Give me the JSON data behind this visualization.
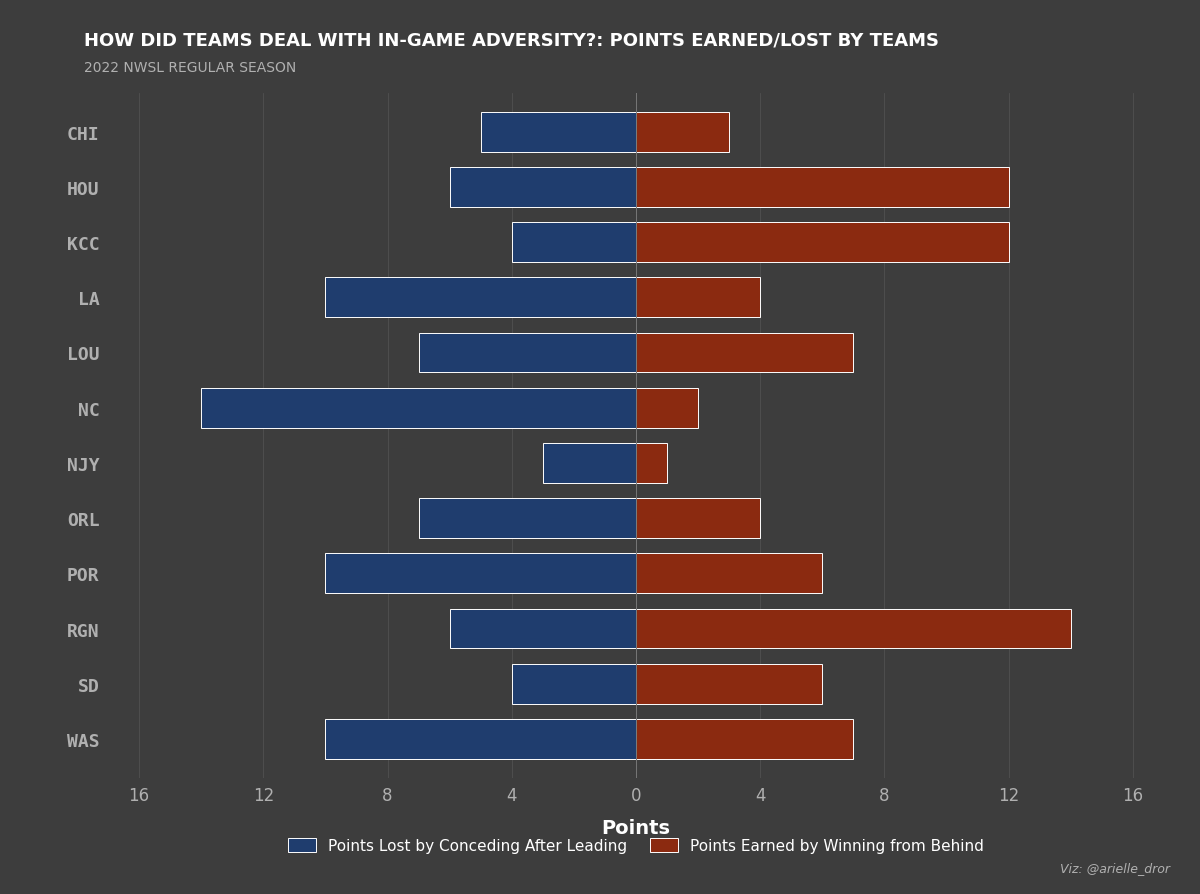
{
  "teams": [
    "CHI",
    "HOU",
    "KCC",
    "LA",
    "LOU",
    "NC",
    "NJY",
    "ORL",
    "POR",
    "RGN",
    "SD",
    "WAS"
  ],
  "points_lost": [
    -5,
    -6,
    -4,
    -10,
    -7,
    -14,
    -3,
    -7,
    -10,
    -6,
    -4,
    -10
  ],
  "points_earned": [
    3,
    12,
    12,
    4,
    7,
    2,
    1,
    4,
    6,
    14,
    6,
    7
  ],
  "blue_color": "#1f3d6e",
  "red_color": "#8b2a10",
  "bg_color": "#3d3d3d",
  "grid_color": "#555555",
  "text_color": "#b0b0b0",
  "label_color": "#ffffff",
  "title": "HOW DID TEAMS DEAL WITH IN-GAME ADVERSITY?: POINTS EARNED/LOST BY TEAMS",
  "subtitle": "2022 NWSL REGULAR SEASON",
  "xlabel": "Points",
  "legend_blue": "Points Lost by Conceding After Leading",
  "legend_red": "Points Earned by Winning from Behind",
  "credit": "Viz: @arielle_dror",
  "xlim": [
    -17,
    17
  ],
  "xticks": [
    -16,
    -12,
    -8,
    -4,
    0,
    4,
    8,
    12,
    16
  ],
  "xticklabels": [
    "16",
    "12",
    "8",
    "4",
    "0",
    "4",
    "8",
    "12",
    "16"
  ],
  "bar_height": 0.72,
  "title_fontsize": 13,
  "subtitle_fontsize": 10,
  "tick_fontsize": 12,
  "xlabel_fontsize": 14,
  "ylabel_fontsize": 13,
  "legend_fontsize": 11,
  "credit_fontsize": 9
}
